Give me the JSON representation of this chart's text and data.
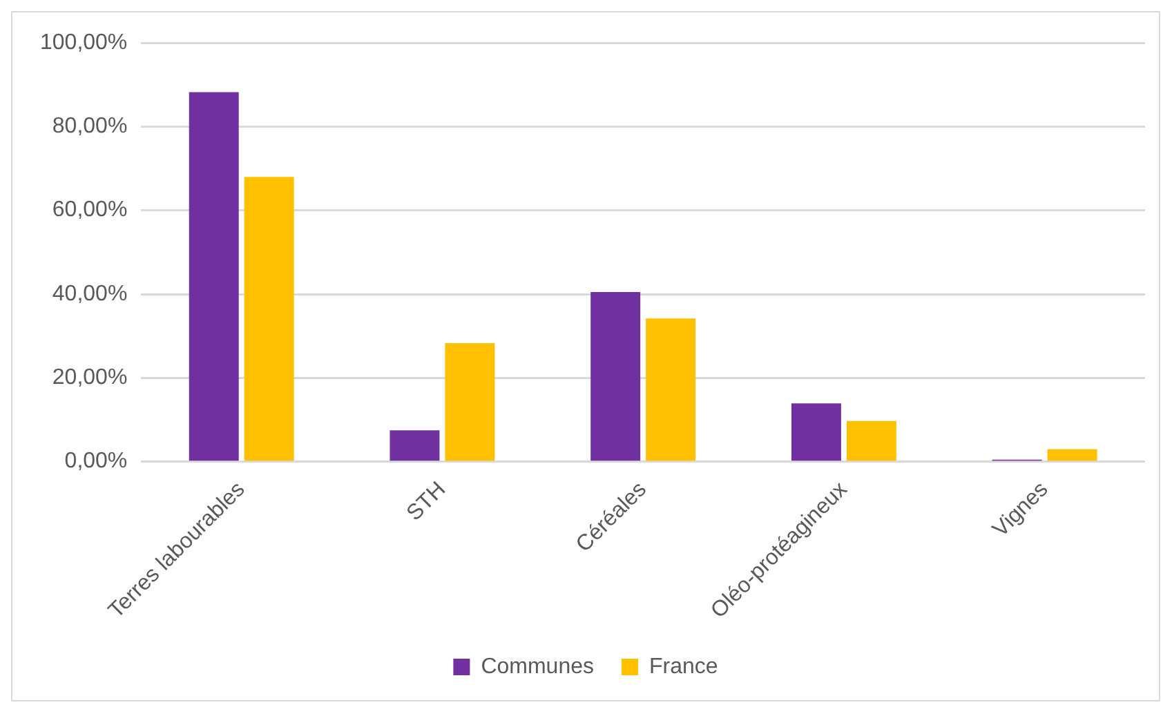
{
  "chart_data": {
    "type": "bar",
    "categories": [
      "Terres labourables",
      "STH",
      "Céréales",
      "Oléo-protéagineux",
      "Vignes"
    ],
    "series": [
      {
        "name": "Communes",
        "color": "#7030a0",
        "values": [
          88.2,
          7.5,
          40.5,
          13.9,
          0.5
        ]
      },
      {
        "name": "France",
        "color": "#ffc000",
        "values": [
          68.0,
          28.3,
          34.2,
          9.7,
          3.0
        ]
      }
    ],
    "ylim": [
      0,
      100
    ],
    "yticks": [
      {
        "value": 0,
        "label": "0,00%"
      },
      {
        "value": 20,
        "label": "20,00%"
      },
      {
        "value": 40,
        "label": "40,00%"
      },
      {
        "value": 60,
        "label": "60,00%"
      },
      {
        "value": 80,
        "label": "80,00%"
      },
      {
        "value": 100,
        "label": "100,00%"
      }
    ],
    "grid": "y",
    "legend": "bottom"
  }
}
